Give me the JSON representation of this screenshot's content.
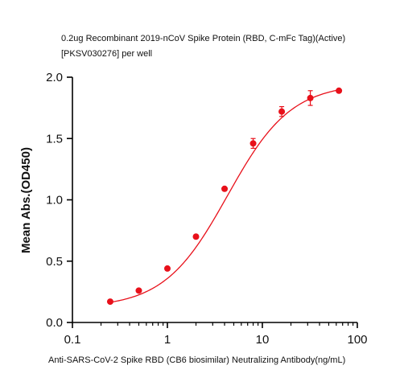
{
  "chart_data": {
    "type": "scatter",
    "title_lines": [
      "0.2ug Recombinant 2019-nCoV Spike Protein (RBD, C-mFc Tag)(Active)",
      "[PKSV030276] per well"
    ],
    "xlabel": "Anti-SARS-CoV-2 Spike RBD (CB6 biosimilar)  Neutralizing Antibody(ng/mL)",
    "ylabel": "Mean Abs.(OD450)",
    "x_scale": "log",
    "xlim": [
      0.1,
      100
    ],
    "ylim": [
      0,
      2.0
    ],
    "x_ticks": [
      0.1,
      1,
      10,
      100
    ],
    "x_tick_labels": [
      "0.1",
      "1",
      "10",
      "100"
    ],
    "y_ticks": [
      0,
      0.5,
      1.0,
      1.5,
      2.0
    ],
    "y_tick_labels": [
      "0.0",
      "0.5",
      "1.0",
      "1.5",
      "2.0"
    ],
    "grid": false,
    "marker_color": "#e8101a",
    "line_color": "#e8101a",
    "series": [
      {
        "x": [
          0.25,
          0.5,
          1,
          2,
          4,
          8,
          16,
          32,
          64
        ],
        "y": [
          0.17,
          0.26,
          0.44,
          0.7,
          1.09,
          1.46,
          1.72,
          1.83,
          1.89
        ],
        "error": [
          0.01,
          0.01,
          0.01,
          0.01,
          0.01,
          0.04,
          0.04,
          0.06,
          0.01
        ]
      }
    ],
    "fit_curve": {
      "bottom": 0.12,
      "top": 1.95,
      "ec50": 4.3,
      "hill": 1.3
    }
  }
}
